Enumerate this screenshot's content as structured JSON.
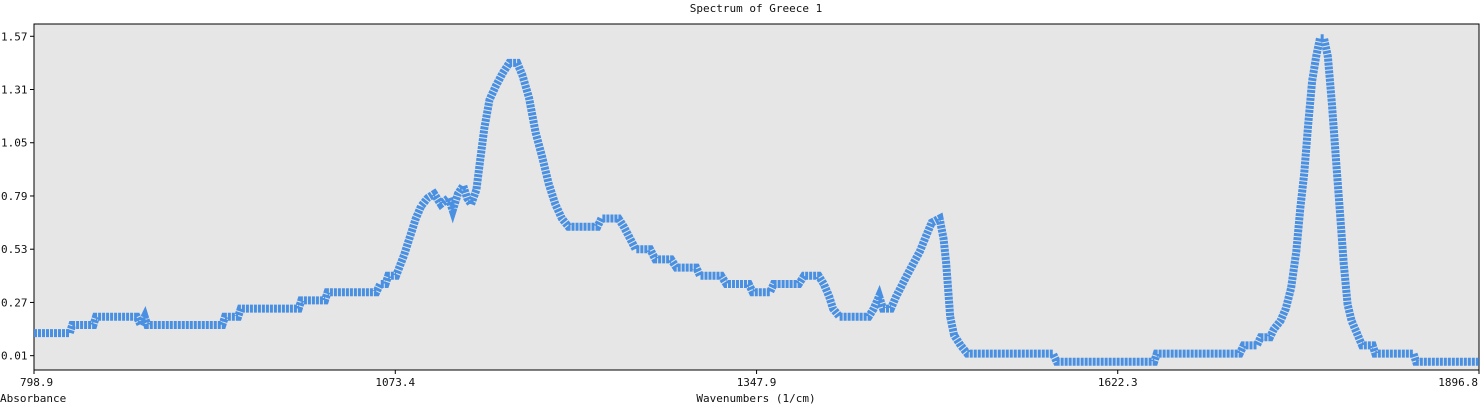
{
  "chart_data": {
    "type": "line",
    "title": "Spectrum of Greece 1",
    "xlabel": "Wavenumbers (1/cm)",
    "ylabel": "Absorbance",
    "xlim": [
      798.9,
      1896.8
    ],
    "ylim": [
      -0.06,
      1.63
    ],
    "x_ticks": [
      798.9,
      1073.4,
      1347.9,
      1622.3,
      1896.8
    ],
    "x_tick_labels": [
      "798.9",
      "1073.4",
      "1347.9",
      "1622.3",
      "1896.8"
    ],
    "y_ticks": [
      0.01,
      0.27,
      0.53,
      0.79,
      1.05,
      1.31,
      1.57
    ],
    "y_tick_labels": [
      "0.01",
      "0.27",
      "0.53",
      "0.79",
      "1.05",
      "1.31",
      "1.57"
    ],
    "grid": false,
    "colors": {
      "line": "#4a90e2",
      "plot_bg": "#e6e6e6",
      "page_bg": "#ffffff"
    },
    "series": [
      {
        "points": [
          [
            798.9,
            0.12
          ],
          [
            826,
            0.12
          ],
          [
            828,
            0.16
          ],
          [
            844,
            0.16
          ],
          [
            846,
            0.2
          ],
          [
            877,
            0.2
          ],
          [
            880,
            0.16
          ],
          [
            883,
            0.2
          ],
          [
            885,
            0.16
          ],
          [
            942,
            0.16
          ],
          [
            944,
            0.2
          ],
          [
            954,
            0.2
          ],
          [
            956,
            0.24
          ],
          [
            1000,
            0.24
          ],
          [
            1002,
            0.28
          ],
          [
            1020,
            0.28
          ],
          [
            1022,
            0.32
          ],
          [
            1059,
            0.32
          ],
          [
            1062,
            0.36
          ],
          [
            1066,
            0.36
          ],
          [
            1068,
            0.4
          ],
          [
            1074,
            0.4
          ],
          [
            1077,
            0.45
          ],
          [
            1080,
            0.5
          ],
          [
            1083,
            0.56
          ],
          [
            1086,
            0.62
          ],
          [
            1089,
            0.68
          ],
          [
            1093,
            0.74
          ],
          [
            1098,
            0.78
          ],
          [
            1103,
            0.8
          ],
          [
            1108,
            0.75
          ],
          [
            1114,
            0.78
          ],
          [
            1117,
            0.72
          ],
          [
            1121,
            0.8
          ],
          [
            1125,
            0.84
          ],
          [
            1128,
            0.78
          ],
          [
            1131,
            0.75
          ],
          [
            1135,
            0.82
          ],
          [
            1138,
            0.97
          ],
          [
            1141,
            1.12
          ],
          [
            1145,
            1.26
          ],
          [
            1150,
            1.33
          ],
          [
            1155,
            1.39
          ],
          [
            1160,
            1.44
          ],
          [
            1166,
            1.44
          ],
          [
            1170,
            1.38
          ],
          [
            1175,
            1.27
          ],
          [
            1180,
            1.1
          ],
          [
            1185,
            0.98
          ],
          [
            1190,
            0.85
          ],
          [
            1195,
            0.75
          ],
          [
            1200,
            0.68
          ],
          [
            1205,
            0.64
          ],
          [
            1227,
            0.64
          ],
          [
            1230,
            0.68
          ],
          [
            1243,
            0.68
          ],
          [
            1247,
            0.64
          ],
          [
            1252,
            0.58
          ],
          [
            1256,
            0.53
          ],
          [
            1267,
            0.53
          ],
          [
            1271,
            0.48
          ],
          [
            1283,
            0.48
          ],
          [
            1287,
            0.44
          ],
          [
            1302,
            0.44
          ],
          [
            1305,
            0.4
          ],
          [
            1321,
            0.4
          ],
          [
            1325,
            0.36
          ],
          [
            1342,
            0.36
          ],
          [
            1345,
            0.32
          ],
          [
            1358,
            0.32
          ],
          [
            1361,
            0.36
          ],
          [
            1380,
            0.36
          ],
          [
            1384,
            0.4
          ],
          [
            1395,
            0.4
          ],
          [
            1399,
            0.36
          ],
          [
            1403,
            0.3
          ],
          [
            1406,
            0.24
          ],
          [
            1411,
            0.2
          ],
          [
            1433,
            0.2
          ],
          [
            1437,
            0.24
          ],
          [
            1441,
            0.3
          ],
          [
            1444,
            0.24
          ],
          [
            1450,
            0.24
          ],
          [
            1454,
            0.3
          ],
          [
            1458,
            0.35
          ],
          [
            1462,
            0.4
          ],
          [
            1467,
            0.46
          ],
          [
            1472,
            0.52
          ],
          [
            1477,
            0.6
          ],
          [
            1481,
            0.66
          ],
          [
            1487,
            0.68
          ],
          [
            1490,
            0.58
          ],
          [
            1492,
            0.46
          ],
          [
            1495,
            0.2
          ],
          [
            1498,
            0.11
          ],
          [
            1503,
            0.06
          ],
          [
            1508,
            0.02
          ],
          [
            1573,
            0.02
          ],
          [
            1576,
            -0.02
          ],
          [
            1650,
            -0.02
          ],
          [
            1652,
            0.02
          ],
          [
            1715,
            0.02
          ],
          [
            1718,
            0.06
          ],
          [
            1728,
            0.06
          ],
          [
            1731,
            0.1
          ],
          [
            1738,
            0.1
          ],
          [
            1741,
            0.14
          ],
          [
            1746,
            0.18
          ],
          [
            1750,
            0.24
          ],
          [
            1754,
            0.34
          ],
          [
            1758,
            0.52
          ],
          [
            1761,
            0.73
          ],
          [
            1764,
            0.9
          ],
          [
            1767,
            1.14
          ],
          [
            1770,
            1.35
          ],
          [
            1773,
            1.47
          ],
          [
            1776,
            1.56
          ],
          [
            1779,
            1.56
          ],
          [
            1782,
            1.47
          ],
          [
            1785,
            1.24
          ],
          [
            1788,
            0.98
          ],
          [
            1791,
            0.72
          ],
          [
            1794,
            0.46
          ],
          [
            1797,
            0.26
          ],
          [
            1800,
            0.18
          ],
          [
            1804,
            0.12
          ],
          [
            1808,
            0.06
          ],
          [
            1816,
            0.06
          ],
          [
            1818,
            0.02
          ],
          [
            1847,
            0.02
          ],
          [
            1849,
            -0.02
          ],
          [
            1896.8,
            -0.02
          ]
        ]
      }
    ]
  }
}
